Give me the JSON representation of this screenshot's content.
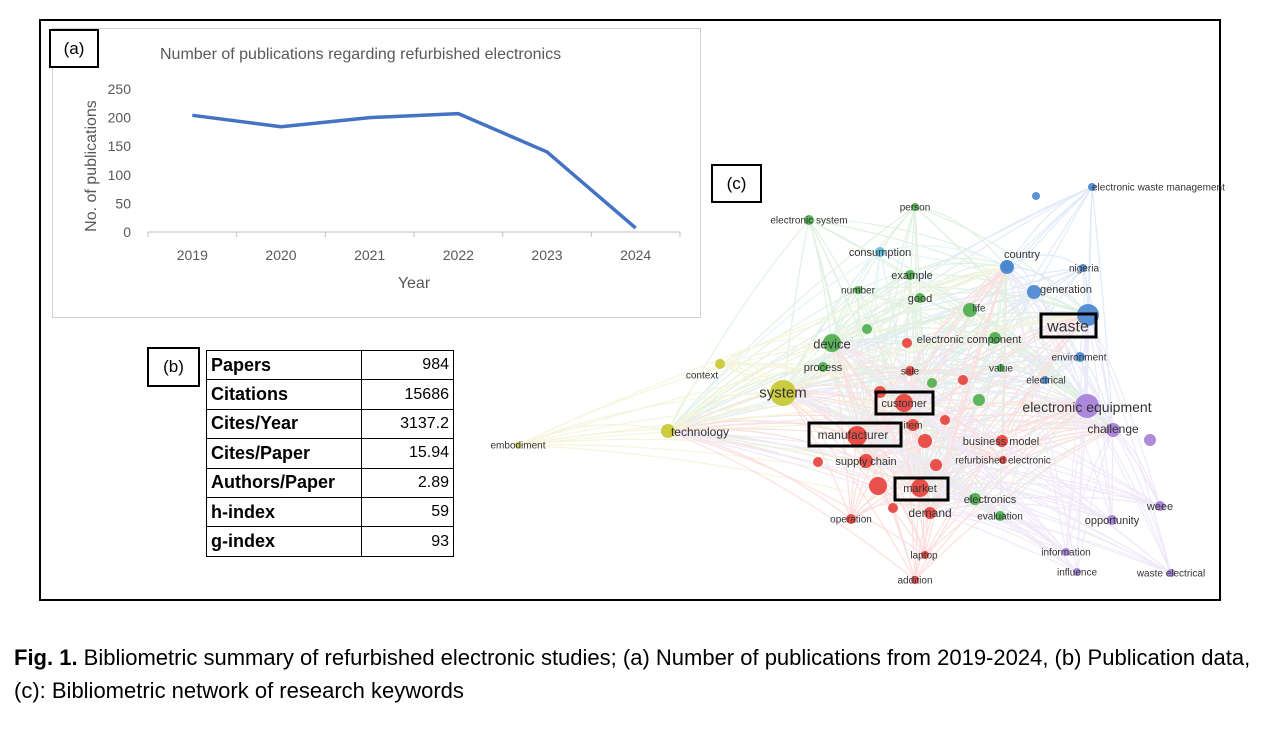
{
  "panel_labels": {
    "a": "(a)",
    "b": "(b)",
    "c": "(c)"
  },
  "chart_data": {
    "type": "line",
    "title": "Number of publications regarding refurbished electronics",
    "xlabel": "Year",
    "ylabel": "No. of publications",
    "categories": [
      "2019",
      "2020",
      "2021",
      "2022",
      "2023",
      "2024"
    ],
    "series": [
      {
        "values": [
          204,
          184,
          200,
          207,
          140,
          7
        ],
        "color": "#4472c4"
      }
    ],
    "ylim": [
      0,
      250
    ],
    "yticks": [
      "0",
      "50",
      "100",
      "150",
      "200",
      "250"
    ],
    "grid": false
  },
  "table": {
    "rows": [
      {
        "label": "Papers",
        "value": "984"
      },
      {
        "label": "Citations",
        "value": "15686"
      },
      {
        "label": "Cites/Year",
        "value": "3137.2"
      },
      {
        "label": "Cites/Paper",
        "value": "15.94"
      },
      {
        "label": "Authors/Paper",
        "value": "2.89"
      },
      {
        "label": "h-index",
        "value": "59"
      },
      {
        "label": "g-index",
        "value": "93"
      }
    ]
  },
  "network": {
    "cluster_colors": {
      "red": "#e8403a",
      "green": "#4cae4c",
      "blue": "#4a87d0",
      "yellow": "#c8c832",
      "purple": "#a57fd8",
      "cyan": "#60c0e0"
    },
    "keywords": [
      {
        "label": "electronic waste management",
        "cluster": "blue"
      },
      {
        "label": "person",
        "cluster": "green"
      },
      {
        "label": "electronic system",
        "cluster": "green"
      },
      {
        "label": "consumption",
        "cluster": "cyan"
      },
      {
        "label": "country",
        "cluster": "blue"
      },
      {
        "label": "nigeria",
        "cluster": "blue"
      },
      {
        "label": "example",
        "cluster": "green"
      },
      {
        "label": "generation",
        "cluster": "blue"
      },
      {
        "label": "number",
        "cluster": "green"
      },
      {
        "label": "good",
        "cluster": "green"
      },
      {
        "label": "life",
        "cluster": "green"
      },
      {
        "label": "waste",
        "cluster": "blue"
      },
      {
        "label": "device",
        "cluster": "green"
      },
      {
        "label": "electronic component",
        "cluster": "green"
      },
      {
        "label": "environment",
        "cluster": "blue"
      },
      {
        "label": "process",
        "cluster": "green"
      },
      {
        "label": "context",
        "cluster": "yellow"
      },
      {
        "label": "sale",
        "cluster": "red"
      },
      {
        "label": "value",
        "cluster": "green"
      },
      {
        "label": "electrical",
        "cluster": "blue"
      },
      {
        "label": "system",
        "cluster": "yellow"
      },
      {
        "label": "customer",
        "cluster": "red"
      },
      {
        "label": "electronic equipment",
        "cluster": "purple"
      },
      {
        "label": "item",
        "cluster": "red"
      },
      {
        "label": "technology",
        "cluster": "yellow"
      },
      {
        "label": "manufacturer",
        "cluster": "red"
      },
      {
        "label": "challenge",
        "cluster": "purple"
      },
      {
        "label": "business model",
        "cluster": "red"
      },
      {
        "label": "embodiment",
        "cluster": "yellow"
      },
      {
        "label": "supply chain",
        "cluster": "red"
      },
      {
        "label": "refurbished electronic",
        "cluster": "red"
      },
      {
        "label": "market",
        "cluster": "red"
      },
      {
        "label": "electronics",
        "cluster": "green"
      },
      {
        "label": "weee",
        "cluster": "purple"
      },
      {
        "label": "demand",
        "cluster": "red"
      },
      {
        "label": "evaluation",
        "cluster": "green"
      },
      {
        "label": "operation",
        "cluster": "red"
      },
      {
        "label": "opportunity",
        "cluster": "purple"
      },
      {
        "label": "laptop",
        "cluster": "red"
      },
      {
        "label": "information",
        "cluster": "purple"
      },
      {
        "label": "influence",
        "cluster": "purple"
      },
      {
        "label": "waste electrical",
        "cluster": "purple"
      },
      {
        "label": "addition",
        "cluster": "red"
      }
    ],
    "highlighted": [
      "waste",
      "customer",
      "manufacturer",
      "market"
    ]
  },
  "caption": {
    "fig_label": "Fig. 1.",
    "text": " Bibliometric summary of refurbished electronic studies; (a) Number of publications from 2019-2024, (b) Publication data, (c): Bibliometric network of research keywords"
  }
}
